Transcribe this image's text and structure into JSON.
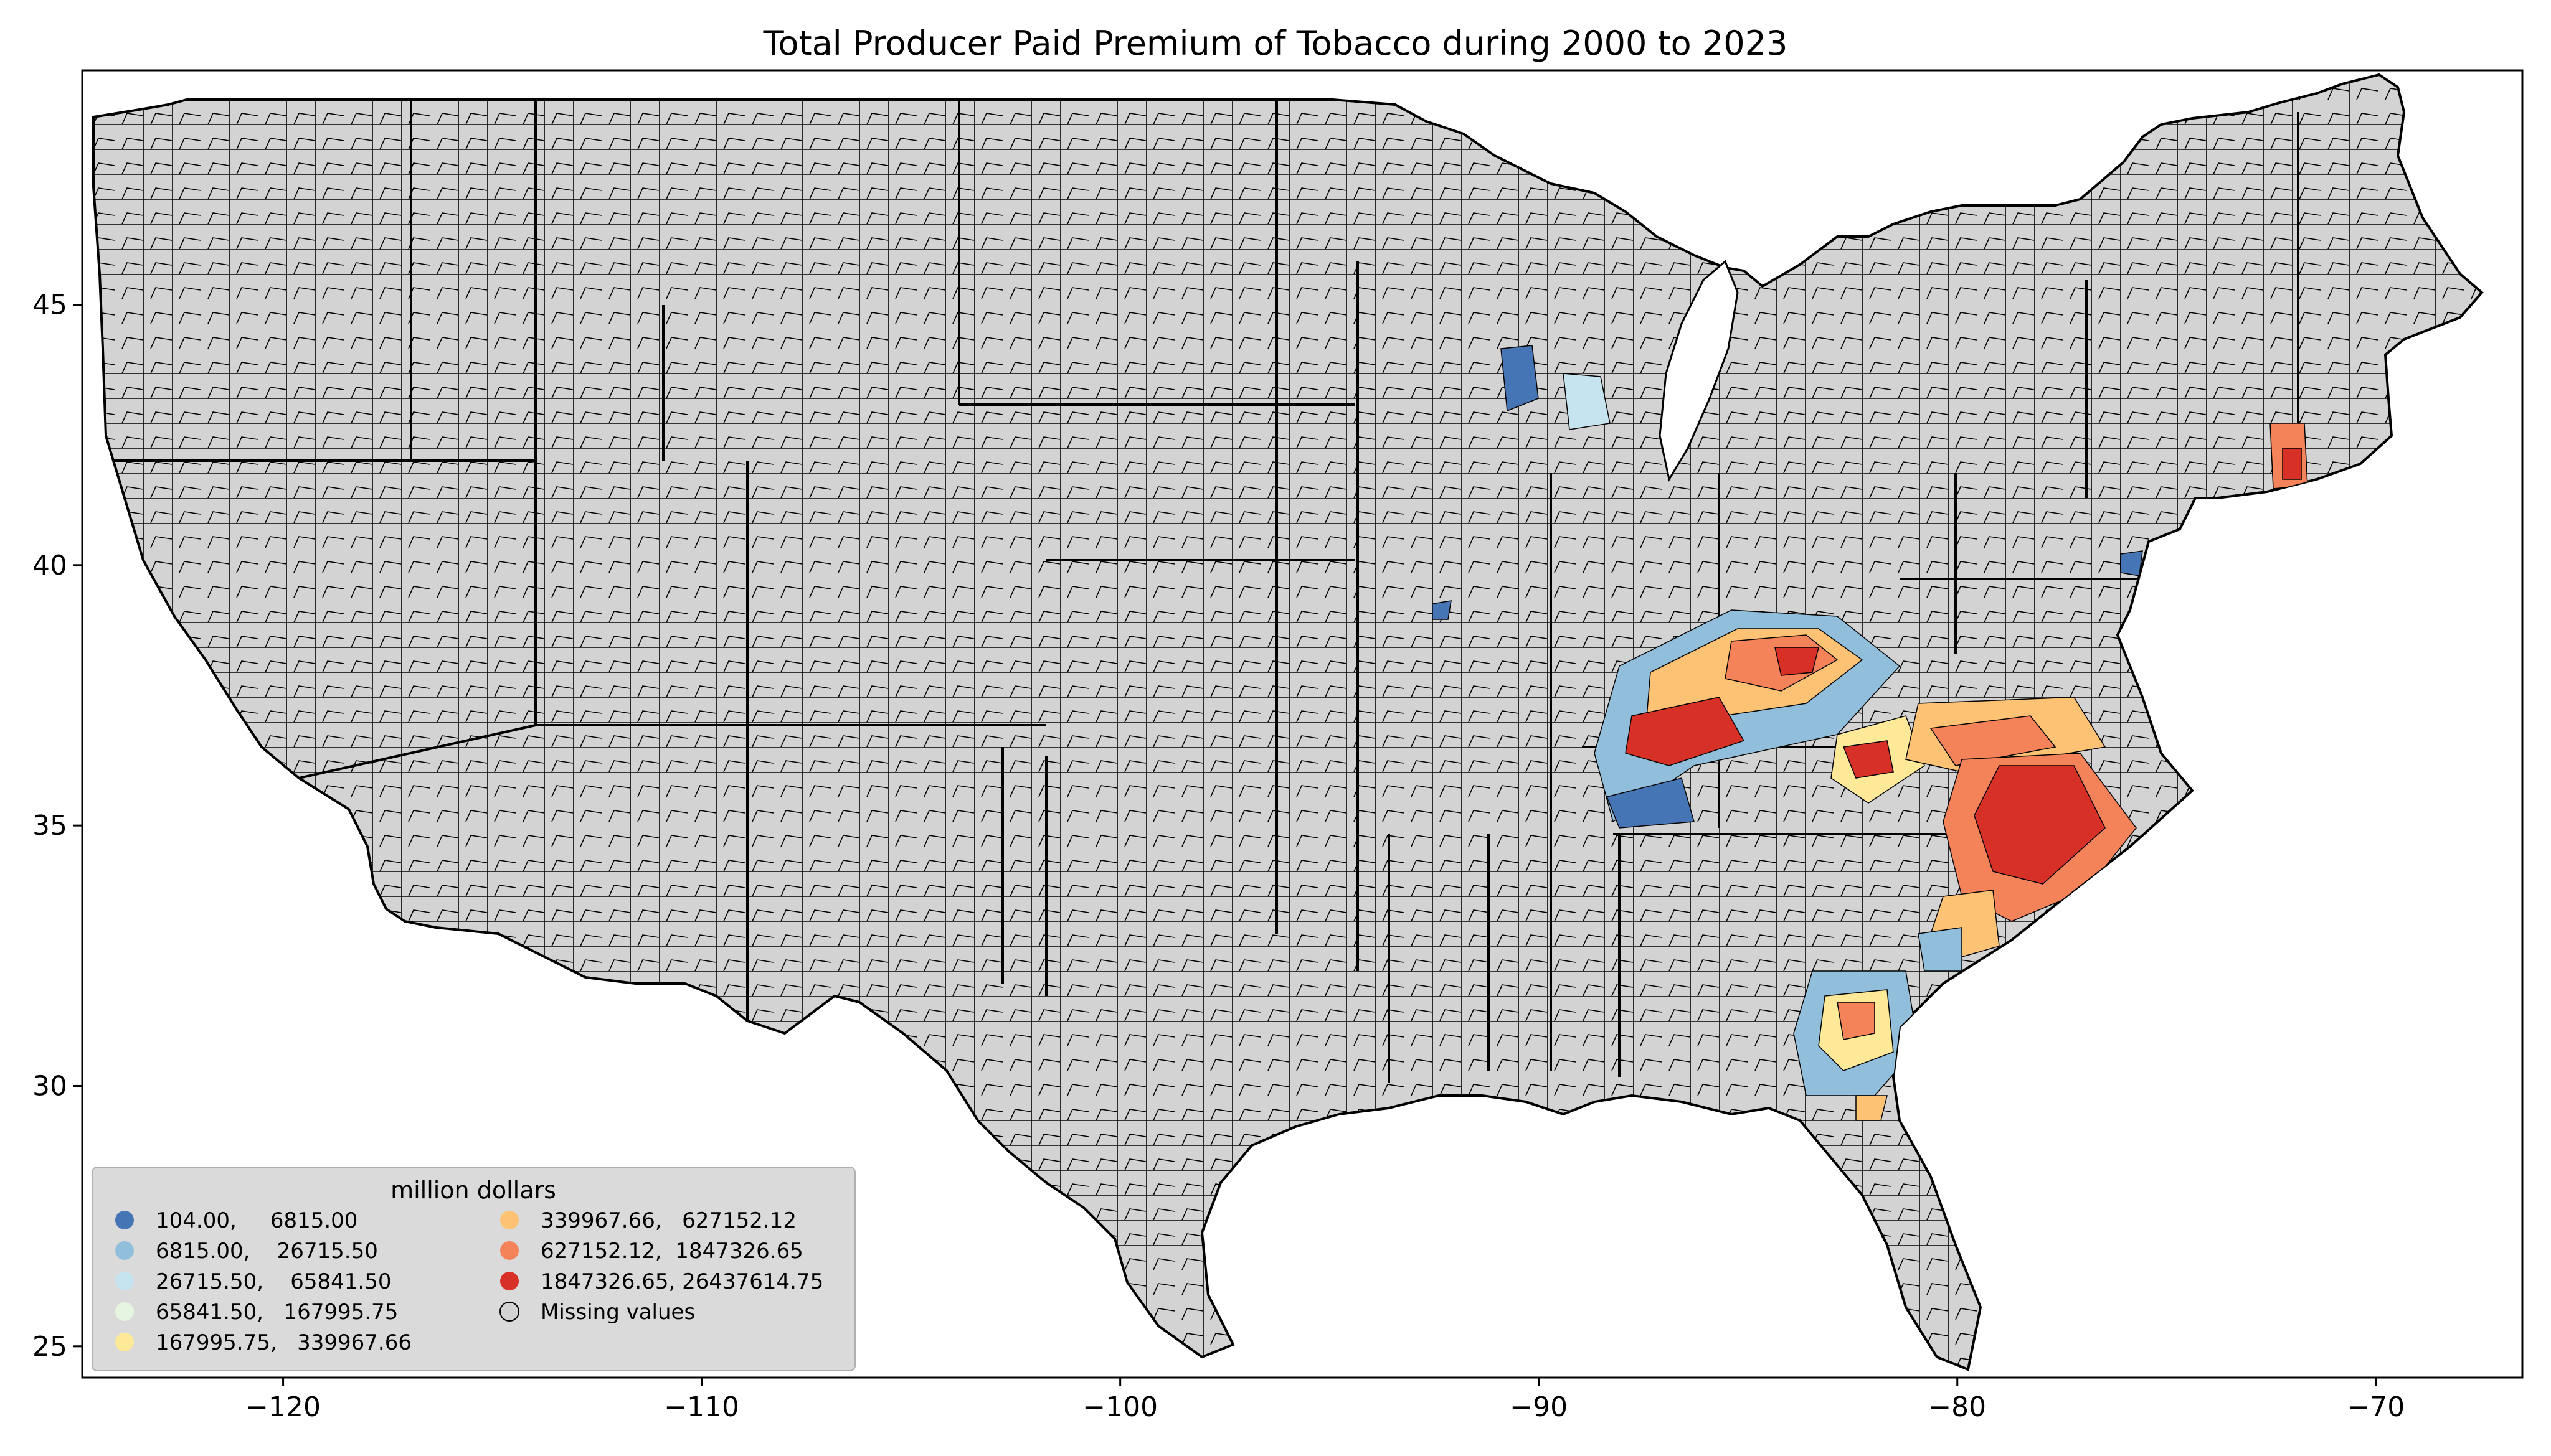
{
  "title": "Total Producer Paid Premium of Tobacco during 2000 to 2023",
  "axes": {
    "x_ticks": [
      "−120",
      "−110",
      "−100",
      "−90",
      "−80",
      "−70"
    ],
    "y_ticks": [
      "25",
      "30",
      "35",
      "40",
      "45"
    ],
    "x_range": [
      -124.8,
      -66.5
    ],
    "y_range": [
      24.4,
      49.5
    ]
  },
  "legend": {
    "title": "million dollars",
    "placement": "lower-left",
    "items": [
      {
        "label": "104.00,     6815.00",
        "color": "#4575b4"
      },
      {
        "label": "6815.00,    26715.50",
        "color": "#91bfdb"
      },
      {
        "label": "26715.50,    65841.50",
        "color": "#c6e4ef"
      },
      {
        "label": "65841.50,   167995.75",
        "color": "#e6f5e0"
      },
      {
        "label": "167995.75,   339967.66",
        "color": "#fee999"
      },
      {
        "label": "339967.66,   627152.12",
        "color": "#fdc273"
      },
      {
        "label": "627152.12,  1847326.65",
        "color": "#f4835a"
      },
      {
        "label": "1847326.65, 26437614.75",
        "color": "#d73027"
      },
      {
        "label": "Missing values",
        "color": "#d3d3d3"
      }
    ]
  },
  "colors": {
    "missing": "#d3d3d3",
    "border": "#000000"
  }
}
